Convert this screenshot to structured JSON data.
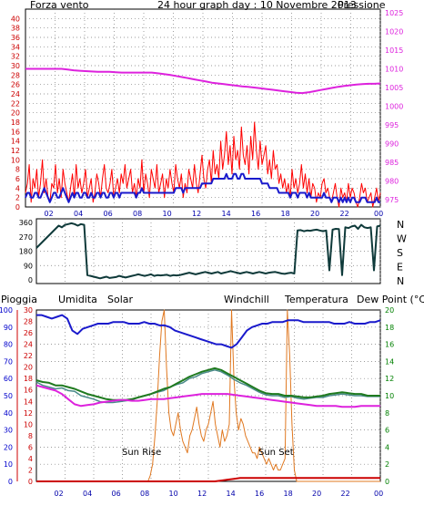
{
  "colors": {
    "wind": "#ff0000",
    "gust_hint": "#ff0000",
    "pressure": "#dd22dd",
    "humidity": "#1a1acc",
    "solar": "#e07820",
    "windchill": "#4a8a8a",
    "temperature": "#1f7a1f",
    "dewpoint": "#dd22dd",
    "rain": "#cc0000",
    "direction": "#0f3a3a",
    "axis_green": "#008000",
    "axis_teal": "#008080",
    "grid": "#7a7a7a"
  },
  "header": {
    "title": "24 hour graph day : 10 Novembre 2013"
  },
  "chart_data": [
    {
      "id": "wind_pressure",
      "type": "line",
      "left_label": "Forza vento",
      "right_label": "Pressione",
      "x_ticks": [
        "02",
        "04",
        "06",
        "08",
        "10",
        "12",
        "14",
        "16",
        "18",
        "20",
        "22",
        "00"
      ],
      "left_ticks": [
        0,
        2,
        4,
        6,
        8,
        10,
        12,
        14,
        16,
        18,
        20,
        22,
        24,
        26,
        28,
        30,
        32,
        34,
        36,
        38,
        40
      ],
      "left_range": [
        0,
        42
      ],
      "right_ticks": [
        975,
        980,
        985,
        990,
        995,
        1000,
        1005,
        1010,
        1015,
        1020,
        1025
      ],
      "right_range": [
        973,
        1026
      ],
      "series": [
        {
          "key": "wind_gust",
          "values": [
            3,
            5,
            9,
            1,
            6,
            4,
            8,
            2,
            5,
            10,
            3,
            6,
            2,
            1,
            5,
            4,
            9,
            3,
            6,
            2,
            8,
            5,
            3,
            1,
            4,
            7,
            2,
            9,
            4,
            6,
            3,
            5,
            8,
            2,
            4,
            6,
            1,
            3,
            7,
            5,
            2,
            6,
            9,
            4,
            3,
            5,
            8,
            2,
            4,
            6,
            3,
            7,
            5,
            9,
            4,
            6,
            8,
            3,
            5,
            2,
            6,
            4,
            10,
            3,
            7,
            5,
            2,
            8,
            6,
            4,
            9,
            3,
            5,
            7,
            2,
            6,
            4,
            8,
            5,
            3,
            9,
            6,
            4,
            7,
            2,
            5,
            3,
            8,
            6,
            4,
            9,
            5,
            3,
            7,
            11,
            6,
            4,
            8,
            10,
            5,
            12,
            7,
            9,
            6,
            14,
            8,
            11,
            16,
            9,
            13,
            7,
            15,
            10,
            12,
            8,
            17,
            11,
            9,
            13,
            7,
            15,
            10,
            18,
            12,
            8,
            14,
            9,
            11,
            13,
            7,
            10,
            6,
            12,
            8,
            9,
            5,
            7,
            4,
            6,
            3,
            5,
            2,
            8,
            4,
            6,
            3,
            5,
            9,
            4,
            7,
            3,
            6,
            2,
            5,
            4,
            1,
            3,
            2,
            5,
            6,
            3,
            4,
            2,
            1,
            3,
            5,
            2,
            0,
            4,
            2,
            3,
            1,
            5,
            2,
            4,
            3,
            1,
            0,
            2,
            5,
            3,
            4,
            1,
            2,
            3,
            0,
            2,
            4,
            1,
            3
          ]
        },
        {
          "key": "wind_avg",
          "values": [
            2,
            3,
            3,
            2,
            2,
            3,
            3,
            2,
            2,
            3,
            4,
            3,
            2,
            1,
            2,
            3,
            3,
            2,
            2,
            3,
            4,
            3,
            2,
            1,
            2,
            3,
            2,
            3,
            3,
            2,
            2,
            3,
            3,
            2,
            2,
            3,
            2,
            2,
            3,
            3,
            2,
            3,
            3,
            2,
            2,
            3,
            3,
            2,
            3,
            3,
            2,
            3,
            3,
            3,
            3,
            3,
            3,
            3,
            3,
            2,
            3,
            3,
            4,
            3,
            3,
            3,
            3,
            3,
            3,
            3,
            3,
            3,
            3,
            3,
            3,
            3,
            3,
            3,
            3,
            3,
            4,
            4,
            4,
            4,
            3,
            4,
            4,
            4,
            4,
            4,
            4,
            4,
            4,
            4,
            5,
            5,
            5,
            5,
            5,
            5,
            6,
            6,
            6,
            6,
            6,
            6,
            6,
            7,
            6,
            6,
            6,
            7,
            7,
            6,
            6,
            7,
            7,
            6,
            6,
            6,
            6,
            6,
            6,
            6,
            6,
            6,
            5,
            5,
            5,
            5,
            4,
            4,
            4,
            4,
            4,
            3,
            3,
            3,
            3,
            3,
            3,
            2,
            3,
            3,
            3,
            2,
            3,
            3,
            3,
            3,
            2,
            3,
            2,
            2,
            2,
            2,
            2,
            2,
            2,
            3,
            2,
            2,
            2,
            1,
            2,
            2,
            2,
            1,
            2,
            1,
            2,
            1,
            2,
            1,
            2,
            2,
            1,
            1,
            1,
            2,
            2,
            2,
            1,
            1,
            1,
            1,
            1,
            2,
            1,
            1
          ]
        },
        {
          "key": "pressure",
          "values": [
            1010,
            1010,
            1010,
            1010,
            1010,
            1010,
            1010,
            1009.8,
            1009.6,
            1009.5,
            1009.4,
            1009.3,
            1009.2,
            1009.2,
            1009.2,
            1009.1,
            1009,
            1009,
            1009,
            1009,
            1009,
            1009,
            1008.8,
            1008.6,
            1008.4,
            1008.1,
            1007.8,
            1007.5,
            1007.2,
            1006.9,
            1006.6,
            1006.3,
            1006.1,
            1005.9,
            1005.7,
            1005.5,
            1005.3,
            1005.2,
            1005.0,
            1004.8,
            1004.6,
            1004.4,
            1004.2,
            1004,
            1003.8,
            1003.6,
            1003.5,
            1003.7,
            1004.0,
            1004.3,
            1004.6,
            1004.9,
            1005.2,
            1005.4,
            1005.6,
            1005.8,
            1005.9,
            1006,
            1006,
            1006.1
          ]
        }
      ]
    },
    {
      "id": "direction",
      "type": "line",
      "left_ticks": [
        0,
        90,
        180,
        270,
        360
      ],
      "left_range": [
        0,
        360
      ],
      "right_ticks": [
        "N",
        "W",
        "S",
        "E",
        "N"
      ],
      "x_ticks": [
        "02",
        "04",
        "06",
        "08",
        "10",
        "12",
        "14",
        "16",
        "18",
        "20",
        "22",
        "00"
      ],
      "series": [
        {
          "key": "direction",
          "values": [
            200,
            220,
            240,
            260,
            280,
            300,
            320,
            340,
            330,
            345,
            350,
            355,
            350,
            340,
            350,
            345,
            30,
            25,
            20,
            15,
            10,
            15,
            20,
            12,
            15,
            18,
            25,
            20,
            15,
            20,
            25,
            30,
            35,
            30,
            25,
            30,
            35,
            25,
            30,
            28,
            30,
            32,
            25,
            30,
            28,
            30,
            35,
            40,
            45,
            40,
            35,
            40,
            45,
            50,
            45,
            40,
            45,
            50,
            40,
            45,
            50,
            55,
            50,
            45,
            40,
            45,
            50,
            45,
            40,
            45,
            50,
            45,
            40,
            45,
            48,
            50,
            45,
            40,
            38,
            42,
            45,
            40,
            310,
            312,
            305,
            310,
            308,
            312,
            315,
            310,
            305,
            310,
            60,
            315,
            320,
            318,
            30,
            330,
            325,
            335,
            340,
            320,
            345,
            330,
            325,
            330,
            60,
            335,
            340
          ]
        }
      ]
    },
    {
      "id": "weather",
      "type": "line",
      "labels": {
        "rain": "Pioggia",
        "humidity": "Umidita",
        "solar": "Solar",
        "windchill": "Windchill",
        "temperature": "Temperatura",
        "dewpoint": "Dew Point (°C)",
        "sunrise": "Sun Rise",
        "sunset": "Sun Set"
      },
      "x_ticks": [
        "02",
        "04",
        "06",
        "08",
        "10",
        "12",
        "14",
        "16",
        "18",
        "20",
        "22",
        "00"
      ],
      "rain_ticks": [
        0,
        10,
        20,
        30,
        40,
        50,
        60,
        70,
        80,
        90,
        100
      ],
      "rain_range": [
        0,
        100
      ],
      "solar_ticks": [
        0,
        2,
        4,
        6,
        8,
        10,
        12,
        14,
        16,
        18,
        20,
        22,
        24,
        26,
        28,
        30
      ],
      "solar_range": [
        0,
        30
      ],
      "temp_ticks": [
        0,
        2,
        4,
        6,
        8,
        10,
        12,
        14,
        16,
        18,
        20
      ],
      "temp_range": [
        0,
        20
      ],
      "series": [
        {
          "key": "humidity",
          "values": [
            97,
            97,
            96,
            95,
            96,
            97,
            95,
            88,
            86,
            89,
            90,
            91,
            92,
            92,
            92,
            93,
            93,
            93,
            92,
            92,
            92,
            93,
            92,
            92,
            91,
            91,
            90,
            88,
            87,
            86,
            85,
            84,
            83,
            82,
            81,
            80,
            80,
            79,
            78,
            80,
            84,
            88,
            90,
            91,
            92,
            92,
            93,
            93,
            93,
            94,
            94,
            94,
            93,
            93,
            93,
            93,
            93,
            93,
            92,
            92,
            92,
            93,
            92,
            92,
            92,
            93,
            93,
            94
          ]
        },
        {
          "key": "temperature",
          "values": [
            11.8,
            11.6,
            11.5,
            11.2,
            11.2,
            11.0,
            10.8,
            10.5,
            10.2,
            10.0,
            9.8,
            9.6,
            9.5,
            9.5,
            9.5,
            9.6,
            9.8,
            10.0,
            10.2,
            10.5,
            10.8,
            11.0,
            11.4,
            11.8,
            12.2,
            12.5,
            12.8,
            13.0,
            13.2,
            13.0,
            12.6,
            12.2,
            11.8,
            11.4,
            11.0,
            10.6,
            10.3,
            10.2,
            10.2,
            10.0,
            10.0,
            9.9,
            9.8,
            9.8,
            9.9,
            10.0,
            10.2,
            10.3,
            10.4,
            10.3,
            10.2,
            10.2,
            10.0,
            10.0,
            10.0
          ]
        },
        {
          "key": "windchill",
          "values": [
            11.6,
            11.2,
            11.0,
            10.8,
            10.9,
            10.6,
            10.5,
            10.0,
            9.8,
            9.6,
            9.3,
            9.2,
            9.2,
            9.3,
            9.4,
            9.5,
            9.8,
            10.0,
            10.2,
            10.4,
            10.6,
            11.0,
            11.3,
            11.5,
            12.0,
            12.2,
            12.6,
            12.8,
            13.0,
            12.8,
            12.4,
            11.9,
            11.5,
            11.2,
            10.8,
            10.4,
            10.1,
            10.0,
            10.0,
            9.8,
            9.9,
            9.7,
            9.6,
            9.7,
            9.8,
            9.8,
            10.0,
            10.1,
            10.2,
            10.1,
            10.0,
            10.0,
            9.9,
            9.9,
            9.9
          ]
        },
        {
          "key": "dewpoint",
          "values": [
            11.2,
            11.0,
            10.8,
            10.6,
            10.2,
            9.6,
            9.0,
            8.8,
            8.9,
            9.0,
            9.2,
            9.3,
            9.4,
            9.5,
            9.5,
            9.4,
            9.4,
            9.5,
            9.6,
            9.6,
            9.6,
            9.7,
            9.8,
            9.9,
            10.0,
            10.1,
            10.2,
            10.2,
            10.2,
            10.2,
            10.2,
            10.1,
            10.0,
            9.9,
            9.8,
            9.7,
            9.6,
            9.5,
            9.4,
            9.3,
            9.2,
            9.1,
            9.0,
            8.9,
            8.8,
            8.8,
            8.8,
            8.8,
            8.7,
            8.7,
            8.7,
            8.8,
            8.8,
            8.8,
            8.8
          ]
        },
        {
          "key": "solar",
          "values": [
            0,
            0,
            0,
            0,
            0,
            0,
            0,
            0,
            0,
            0,
            0,
            0,
            0,
            0,
            0,
            0,
            0,
            0,
            0,
            0,
            0,
            0,
            0,
            0,
            0,
            0,
            0,
            0,
            0,
            0,
            0,
            0,
            0,
            0,
            0,
            0,
            0,
            0,
            0,
            0,
            0,
            0,
            0,
            0,
            0,
            0,
            0,
            0,
            0,
            1,
            3,
            8,
            14,
            22,
            28,
            30,
            20,
            12,
            9,
            8,
            10,
            12,
            9,
            7,
            6,
            5,
            8,
            9,
            11,
            13,
            10,
            8,
            7,
            9,
            10,
            12,
            14,
            10,
            8,
            6,
            9,
            7,
            8,
            10,
            30,
            18,
            12,
            9,
            11,
            10,
            8,
            7,
            6,
            5,
            5,
            4,
            6,
            5,
            4,
            3,
            4,
            3,
            2,
            3,
            2,
            2,
            3,
            4,
            30,
            22,
            10,
            2,
            0,
            0,
            0,
            0,
            0,
            0,
            0,
            0,
            0,
            0,
            0,
            0,
            0,
            0,
            0,
            0,
            0,
            0,
            0,
            0,
            0,
            0,
            0,
            0,
            0,
            0,
            0,
            0,
            0,
            0,
            0,
            0,
            0,
            0,
            0,
            0,
            0
          ]
        },
        {
          "key": "rain",
          "values": [
            0,
            0,
            0,
            0,
            0,
            0,
            0,
            0,
            0,
            0,
            0,
            0,
            0,
            0,
            0,
            0,
            0,
            0,
            0,
            0,
            0,
            0,
            0,
            0,
            0,
            0,
            0,
            0,
            0,
            0.5,
            1,
            1.5,
            2,
            2,
            2,
            2,
            2,
            2,
            2,
            2,
            2,
            2,
            2,
            2,
            2,
            2,
            2,
            2,
            2,
            2,
            2,
            2,
            2,
            2,
            2
          ]
        }
      ]
    }
  ]
}
